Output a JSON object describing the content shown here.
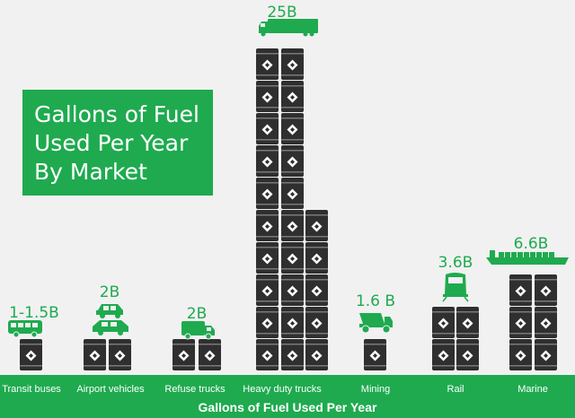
{
  "chart_data": {
    "type": "bar",
    "title_lines": [
      "Gallons of Fuel",
      "Used Per Year",
      "By Market"
    ],
    "xlabel": "Gallons of Fuel Used Per Year",
    "categories": [
      "Transit buses",
      "Airport vehicles",
      "Refuse trucks",
      "Heavy duty trucks",
      "Mining",
      "Rail",
      "Marine"
    ],
    "value_labels": [
      "1-1.5B",
      "2B",
      "2B",
      "25B",
      "1.6 B",
      "3.6B",
      "6.6B"
    ],
    "values": [
      1.25,
      2,
      2,
      25,
      1.6,
      3.6,
      6.6
    ],
    "barrel_columns": [
      [
        1
      ],
      [
        1,
        1
      ],
      [
        1,
        1
      ],
      [
        10,
        10,
        5
      ],
      [
        1
      ],
      [
        2,
        2
      ],
      [
        3,
        3
      ]
    ],
    "vehicle_icons": [
      "bus-icon",
      "airport-vehicles-icon",
      "garbage-truck-icon",
      "semi-truck-icon",
      "dump-truck-icon",
      "locomotive-icon",
      "cargo-ship-icon"
    ],
    "colors": {
      "accent": "#1faa4f",
      "barrel": "#2f2f2f",
      "background": "#f1f1f1"
    }
  }
}
